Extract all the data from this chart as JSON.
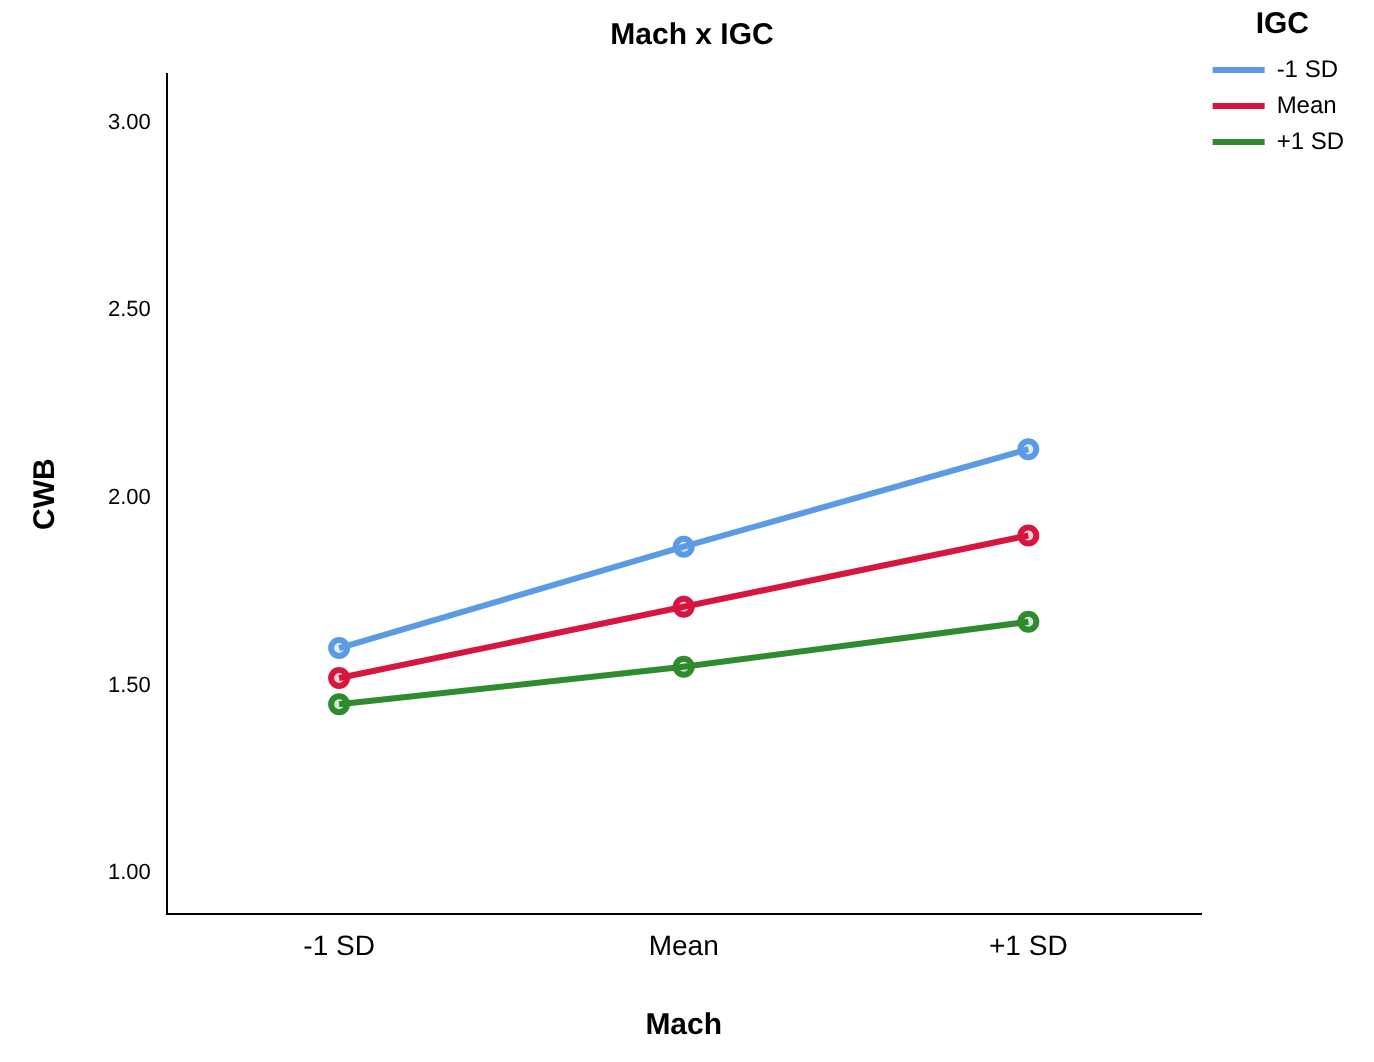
{
  "chart_data": {
    "type": "line",
    "title": "Mach x IGC",
    "xlabel": "Mach",
    "ylabel": "CWB",
    "legend_title": "IGC",
    "categories": [
      "-1 SD",
      "Mean",
      "+1 SD"
    ],
    "series": [
      {
        "name": "-1 SD",
        "color": "#5b9be6",
        "values": [
          1.6,
          1.87,
          2.13
        ]
      },
      {
        "name": "Mean",
        "color": "#d6163f",
        "values": [
          1.52,
          1.71,
          1.9
        ]
      },
      {
        "name": "+1 SD",
        "color": "#2e8b2e",
        "values": [
          1.45,
          1.55,
          1.67
        ]
      }
    ],
    "ylim": [
      0.89,
      3.13
    ],
    "yticks": [
      {
        "value": 1,
        "label": "1.00"
      },
      {
        "value": 1.5,
        "label": "1.50"
      },
      {
        "value": 2,
        "label": "2.00"
      },
      {
        "value": 2.5,
        "label": "2.50"
      },
      {
        "value": 3,
        "label": "3.00"
      }
    ],
    "grid": false,
    "legend": "top right",
    "marker": "circle",
    "line_style": "solid"
  }
}
